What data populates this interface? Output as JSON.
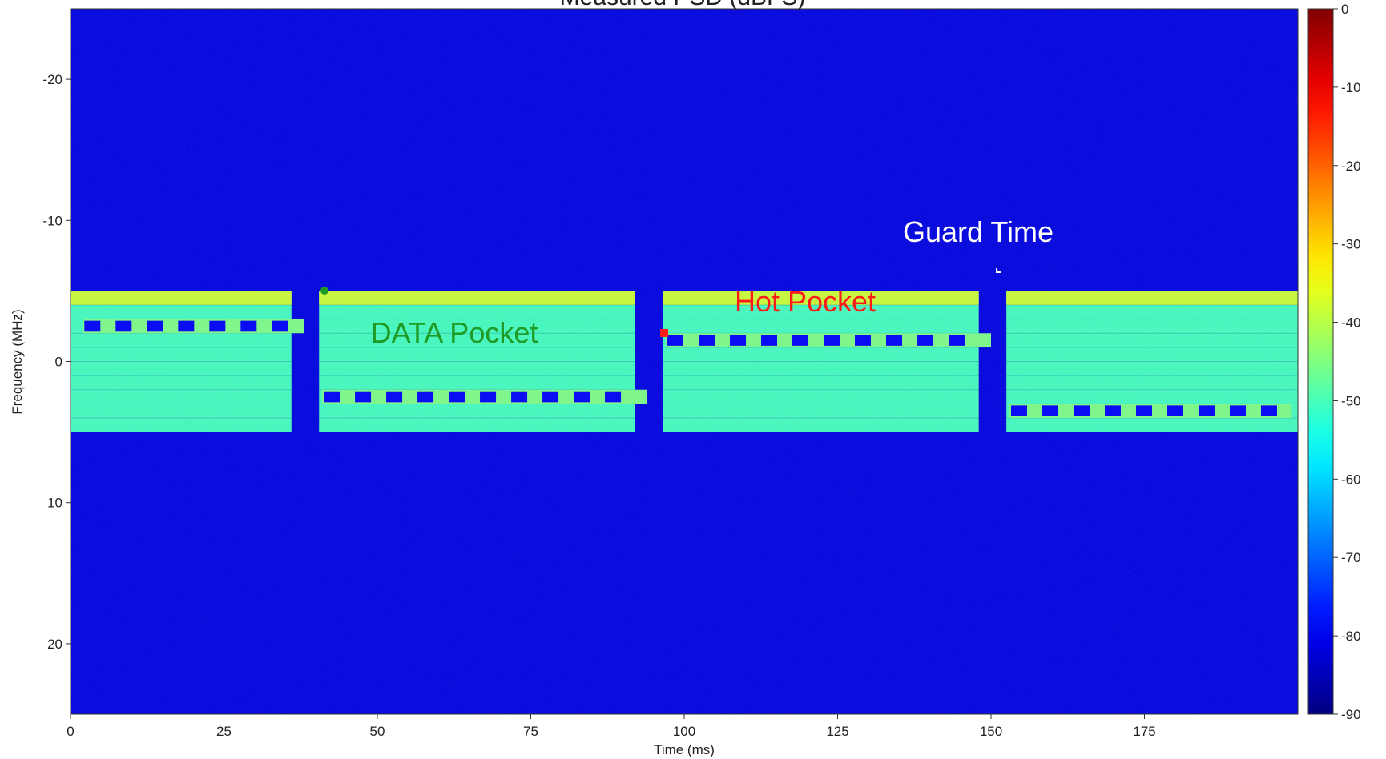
{
  "chart_data": {
    "type": "spectrogram",
    "title": "Measured PSD (dBFS)",
    "x_label": "Time (ms)",
    "y_label": "Frequency (MHz)",
    "xlim": [
      0,
      200
    ],
    "xticks": [
      0,
      25,
      50,
      75,
      100,
      125,
      150,
      175
    ],
    "ylim": [
      -25,
      25
    ],
    "yaxis_inverted": true,
    "yticks": [
      -20,
      -10,
      0,
      10,
      20
    ],
    "colormap": "jet",
    "background_level": -82,
    "colorbar": {
      "lim": [
        -90,
        0
      ],
      "ticks": [
        0,
        -10,
        -20,
        -30,
        -40,
        -50,
        -60,
        -70,
        -80,
        -90
      ]
    },
    "bursts": [
      {
        "t": [
          0,
          36
        ],
        "f": [
          -5,
          5
        ],
        "level": -50,
        "edge_level": -38
      },
      {
        "t": [
          40.5,
          92
        ],
        "f": [
          -5,
          5
        ],
        "level": -50,
        "edge_level": -38
      },
      {
        "t": [
          96.5,
          148
        ],
        "f": [
          -5,
          5
        ],
        "level": -50,
        "edge_level": -38
      },
      {
        "t": [
          152.5,
          200
        ],
        "f": [
          -5,
          5
        ],
        "level": -50,
        "edge_level": -38
      }
    ],
    "pilot_rows": [
      {
        "t": [
          2,
          38
        ],
        "f": [
          -3,
          -2
        ],
        "level": -80,
        "gap_level": -45
      },
      {
        "t": [
          41,
          94
        ],
        "f": [
          2,
          3
        ],
        "level": -80,
        "gap_level": -45
      },
      {
        "t": [
          97,
          150
        ],
        "f": [
          -2,
          -1
        ],
        "level": -80,
        "gap_level": -45
      },
      {
        "t": [
          153,
          199
        ],
        "f": [
          3,
          4
        ],
        "level": -80,
        "gap_level": -45
      }
    ],
    "annotations": [
      "DATA Pocket",
      "Hot Pocket",
      "Guard Time"
    ]
  }
}
